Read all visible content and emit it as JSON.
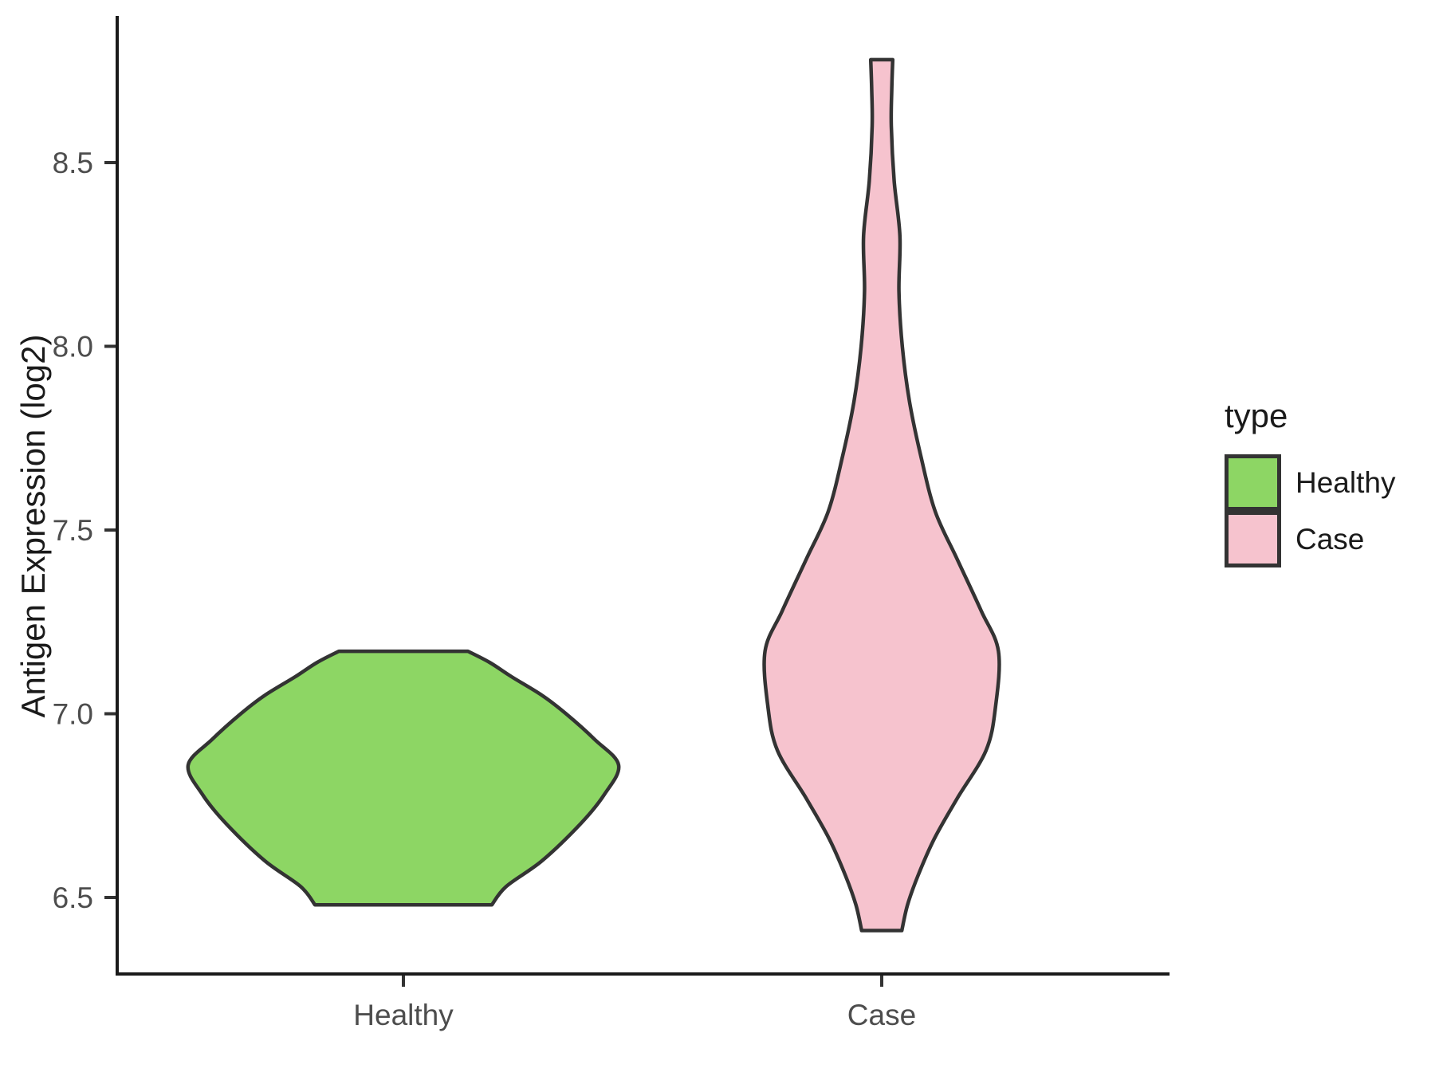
{
  "figure": {
    "background": "#FFFFFF"
  },
  "y_axis": {
    "title": "Antigen Expression (log2)",
    "tick_labels": [
      "6.5",
      "7.0",
      "7.5",
      "8.0",
      "8.5"
    ]
  },
  "x_axis": {
    "tick_labels": [
      "Healthy",
      "Case"
    ]
  },
  "legend": {
    "title": "type",
    "items": [
      {
        "label": "Healthy",
        "color": "#8DD664"
      },
      {
        "label": "Case",
        "color": "#F6C3CE"
      }
    ]
  },
  "colors": {
    "healthy_fill": "#8DD664",
    "case_fill": "#F6C3CE",
    "violin_stroke": "#333333",
    "axis_line": "#1A1A1A",
    "tick_mark": "#333333",
    "tick_text": "#4D4D4D",
    "title_text": "#1A1A1A"
  },
  "chart_data": {
    "type": "violin",
    "title": "",
    "xlabel": "",
    "ylabel": "Antigen Expression (log2)",
    "categories": [
      "Healthy",
      "Case"
    ],
    "yticks": [
      6.5,
      7.0,
      7.5,
      8.0,
      8.5
    ],
    "ylim": [
      6.29,
      8.9
    ],
    "grid": false,
    "legend_title": "type",
    "legend_position": "right",
    "series": [
      {
        "name": "Healthy",
        "fill": "#8DD664",
        "value_range": [
          6.48,
          7.17
        ],
        "peak_density_at": 6.86,
        "profile": [
          [
            6.48,
            0.185
          ],
          [
            6.53,
            0.215
          ],
          [
            6.6,
            0.29
          ],
          [
            6.7,
            0.37
          ],
          [
            6.78,
            0.42
          ],
          [
            6.86,
            0.45
          ],
          [
            6.93,
            0.4
          ],
          [
            7.0,
            0.34
          ],
          [
            7.05,
            0.29
          ],
          [
            7.1,
            0.227
          ],
          [
            7.14,
            0.18
          ],
          [
            7.17,
            0.135
          ]
        ]
      },
      {
        "name": "Case",
        "fill": "#F6C3CE",
        "value_range": [
          6.41,
          8.78
        ],
        "peak_density_at": 7.17,
        "profile": [
          [
            6.41,
            0.042
          ],
          [
            6.48,
            0.054
          ],
          [
            6.56,
            0.076
          ],
          [
            6.66,
            0.11
          ],
          [
            6.77,
            0.158
          ],
          [
            6.9,
            0.218
          ],
          [
            7.02,
            0.238
          ],
          [
            7.17,
            0.244
          ],
          [
            7.28,
            0.208
          ],
          [
            7.42,
            0.158
          ],
          [
            7.55,
            0.112
          ],
          [
            7.7,
            0.082
          ],
          [
            7.85,
            0.058
          ],
          [
            8.0,
            0.043
          ],
          [
            8.15,
            0.036
          ],
          [
            8.3,
            0.038
          ],
          [
            8.45,
            0.026
          ],
          [
            8.6,
            0.02
          ],
          [
            8.7,
            0.021
          ],
          [
            8.78,
            0.023
          ]
        ]
      }
    ]
  }
}
